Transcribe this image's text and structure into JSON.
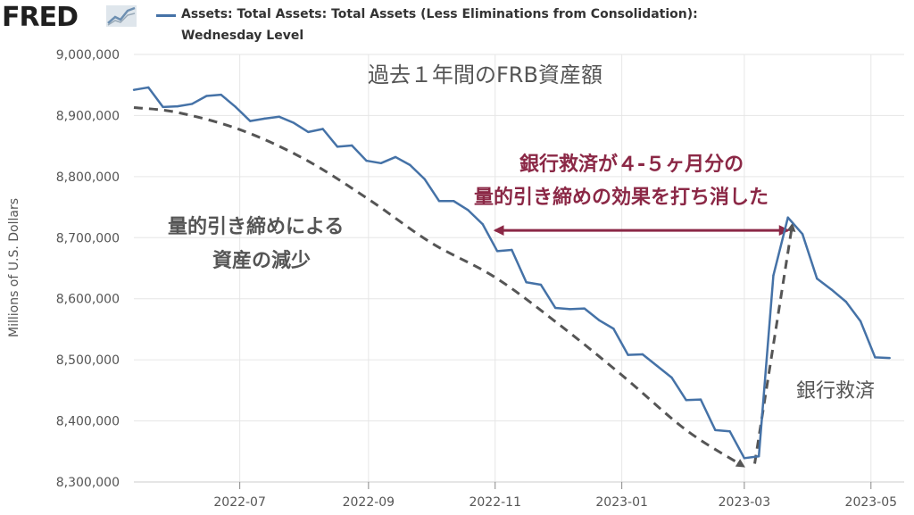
{
  "header": {
    "logo_text": "FRED",
    "logo_icon": "chart-line-icon",
    "series_title_line1": "Assets: Total Assets: Total Assets (Less Eliminations from Consolidation):",
    "series_title_line2": "Wednesday Level"
  },
  "colors": {
    "series": "#4572a7",
    "trend": "#555555",
    "highlight": "#8b2846",
    "grid": "#e6e6e6"
  },
  "chart_data": {
    "type": "line",
    "ylabel": "Millions of U.S. Dollars",
    "ylim": [
      8300000,
      9000000
    ],
    "yticks": [
      8300000,
      8400000,
      8500000,
      8600000,
      8700000,
      8800000,
      8900000,
      9000000
    ],
    "ytick_labels": [
      "8,300,000",
      "8,400,000",
      "8,500,000",
      "8,600,000",
      "8,700,000",
      "8,800,000",
      "8,900,000",
      "9,000,000"
    ],
    "xlim": [
      "2022-05-11",
      "2023-05-17"
    ],
    "xticks": [
      "2022-07-01",
      "2022-09-01",
      "2022-11-01",
      "2023-01-01",
      "2023-03-01",
      "2023-05-01"
    ],
    "xtick_labels": [
      "2022-07",
      "2022-09",
      "2022-11",
      "2023-01",
      "2023-03",
      "2023-05"
    ],
    "grid": true,
    "series": [
      {
        "x": [
          "2022-05-11",
          "2022-05-18",
          "2022-05-25",
          "2022-06-01",
          "2022-06-08",
          "2022-06-15",
          "2022-06-22",
          "2022-06-29",
          "2022-07-06",
          "2022-07-13",
          "2022-07-20",
          "2022-07-27",
          "2022-08-03",
          "2022-08-10",
          "2022-08-17",
          "2022-08-24",
          "2022-08-31",
          "2022-09-07",
          "2022-09-14",
          "2022-09-21",
          "2022-09-28",
          "2022-10-05",
          "2022-10-12",
          "2022-10-19",
          "2022-10-26",
          "2022-11-02",
          "2022-11-09",
          "2022-11-16",
          "2022-11-23",
          "2022-11-30",
          "2022-12-07",
          "2022-12-14",
          "2022-12-21",
          "2022-12-28",
          "2023-01-04",
          "2023-01-11",
          "2023-01-18",
          "2023-01-25",
          "2023-02-01",
          "2023-02-08",
          "2023-02-15",
          "2023-02-22",
          "2023-03-01",
          "2023-03-08",
          "2023-03-15",
          "2023-03-22",
          "2023-03-29",
          "2023-04-05",
          "2023-04-12",
          "2023-04-19",
          "2023-04-26",
          "2023-05-03",
          "2023-05-10"
        ],
        "values": [
          8942000,
          8946000,
          8914000,
          8915000,
          8919000,
          8932000,
          8934000,
          8914000,
          8891000,
          8895000,
          8898000,
          8888000,
          8873000,
          8878000,
          8849000,
          8851000,
          8826000,
          8822000,
          8832000,
          8819000,
          8796000,
          8760000,
          8760000,
          8745000,
          8722000,
          8678000,
          8680000,
          8627000,
          8623000,
          8585000,
          8583000,
          8584000,
          8565000,
          8551000,
          8508000,
          8509000,
          8490000,
          8471000,
          8434000,
          8435000,
          8385000,
          8383000,
          8339000,
          8342000,
          8638000,
          8733000,
          8706000,
          8633000,
          8615000,
          8595000,
          8563000,
          8504000,
          8503000
        ]
      }
    ],
    "trend_arrow": {
      "x": [
        "2022-05-11",
        "2022-06-01",
        "2022-07-01",
        "2022-08-01",
        "2022-09-01",
        "2022-10-01",
        "2022-11-01",
        "2022-12-01",
        "2023-01-01",
        "2023-02-01",
        "2023-02-28"
      ],
      "values": [
        8913000,
        8905000,
        8877000,
        8829000,
        8763000,
        8692000,
        8635000,
        8560000,
        8475000,
        8385000,
        8327000
      ]
    },
    "rescue_arrow": {
      "x": [
        "2023-03-06",
        "2023-03-24"
      ],
      "values": [
        8330000,
        8719000
      ]
    },
    "span_arrow": {
      "x": [
        "2022-11-01",
        "2023-03-22"
      ],
      "value": 8712000
    },
    "annotations": {
      "title": "過去１年間のFRB資産額",
      "decline_line1": "量的引き締めによる",
      "decline_line2": "資産の減少",
      "effect_line1": "銀行救済が４-５ヶ月分の",
      "effect_line2": "量的引き締めの効果を打ち消した",
      "rescue": "銀行救済"
    }
  }
}
